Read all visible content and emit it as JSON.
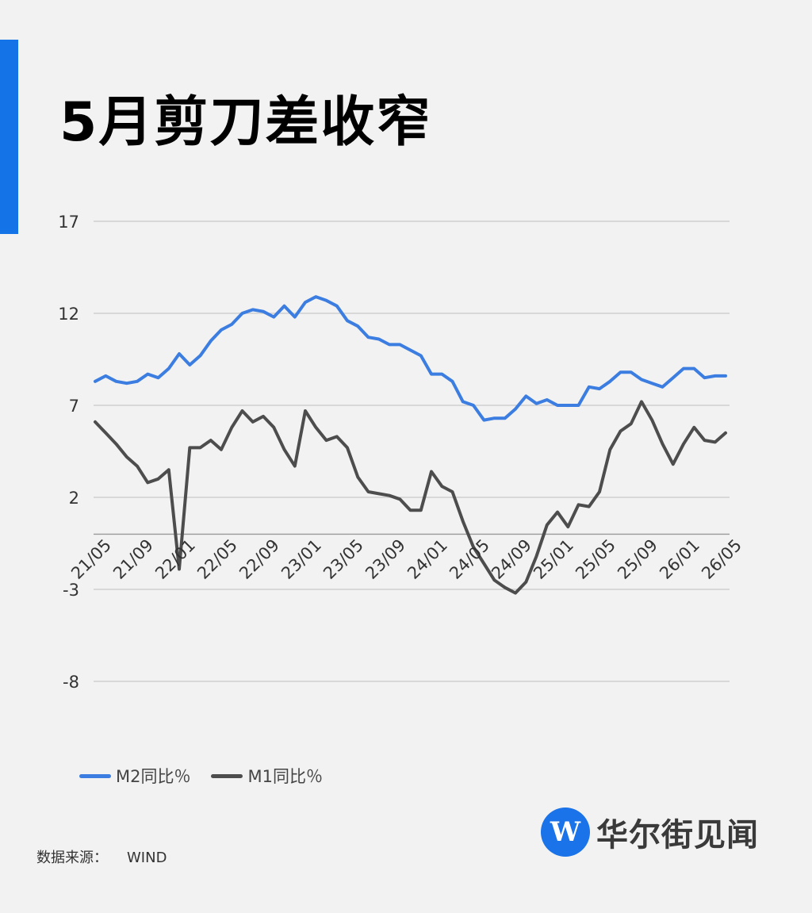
{
  "header": {
    "title": "5月剪刀差收窄"
  },
  "legend": {
    "m2_label": "M2同比％",
    "m1_label": "M1同比％"
  },
  "source": {
    "label": "数据来源：",
    "value": "WIND"
  },
  "logo": {
    "glyph": "W",
    "name": "华尔街见闻"
  },
  "colors": {
    "accent": "#1473e6",
    "m2": "#3b7de0",
    "m1": "#4d4d4d",
    "grid": "#c8c8c8",
    "background": "#f2f2f2"
  },
  "chart_data": {
    "type": "line",
    "ylim": [
      -8,
      17
    ],
    "yticks": [
      17,
      12,
      7,
      2,
      -3,
      -8
    ],
    "xticklabels": [
      "21/05",
      "21/09",
      "22/01",
      "22/05",
      "22/09",
      "23/01",
      "23/05",
      "23/09",
      "24/01",
      "24/05",
      "24/09",
      "25/01",
      "25/05",
      "25/09",
      "26/01",
      "26/05"
    ],
    "x": [
      "21/05",
      "21/06",
      "21/07",
      "21/08",
      "21/09",
      "21/10",
      "21/11",
      "21/12",
      "22/01",
      "22/02",
      "22/03",
      "22/04",
      "22/05",
      "22/06",
      "22/07",
      "22/08",
      "22/09",
      "22/10",
      "22/11",
      "22/12",
      "23/01",
      "23/02",
      "23/03",
      "23/04",
      "23/05",
      "23/06",
      "23/07",
      "23/08",
      "23/09",
      "23/10",
      "23/11",
      "23/12",
      "24/01",
      "24/02",
      "24/03",
      "24/04",
      "24/05",
      "24/06",
      "24/07",
      "24/08",
      "24/09",
      "24/10",
      "24/11",
      "24/12",
      "25/01",
      "25/02",
      "25/03",
      "25/04",
      "25/05",
      "25/06",
      "25/07",
      "25/08",
      "25/09",
      "25/10",
      "25/11",
      "25/12",
      "26/01",
      "26/02",
      "26/03",
      "26/04",
      "26/05"
    ],
    "series": [
      {
        "name": "M2同比％",
        "values": [
          8.3,
          8.6,
          8.3,
          8.2,
          8.3,
          8.7,
          8.5,
          9.0,
          9.8,
          9.2,
          9.7,
          10.5,
          11.1,
          11.4,
          12.0,
          12.2,
          12.1,
          11.8,
          12.4,
          11.8,
          12.6,
          12.9,
          12.7,
          12.4,
          11.6,
          11.3,
          10.7,
          10.6,
          10.3,
          10.3,
          10.0,
          9.7,
          8.7,
          8.7,
          8.3,
          7.2,
          7.0,
          6.2,
          6.3,
          6.3,
          6.8,
          7.5,
          7.1,
          7.3,
          7.0,
          7.0,
          7.0,
          8.0,
          7.9,
          8.3,
          8.8,
          8.8,
          8.4,
          8.2,
          8.0,
          8.5,
          9.0,
          9.0,
          8.5,
          8.6,
          8.6
        ]
      },
      {
        "name": "M1同比％",
        "values": [
          6.1,
          5.5,
          4.9,
          4.2,
          3.7,
          2.8,
          3.0,
          3.5,
          -1.9,
          4.7,
          4.7,
          5.1,
          4.6,
          5.8,
          6.7,
          6.1,
          6.4,
          5.8,
          4.6,
          3.7,
          6.7,
          5.8,
          5.1,
          5.3,
          4.7,
          3.1,
          2.3,
          2.2,
          2.1,
          1.9,
          1.3,
          1.3,
          3.4,
          2.6,
          2.3,
          0.7,
          -0.7,
          -1.6,
          -2.5,
          -2.9,
          -3.2,
          -2.6,
          -1.2,
          0.5,
          1.2,
          0.4,
          1.6,
          1.5,
          2.3,
          4.6,
          5.6,
          6.0,
          7.2,
          6.2,
          4.9,
          3.8,
          4.9,
          5.8,
          5.1,
          5.0,
          5.5
        ]
      }
    ]
  }
}
